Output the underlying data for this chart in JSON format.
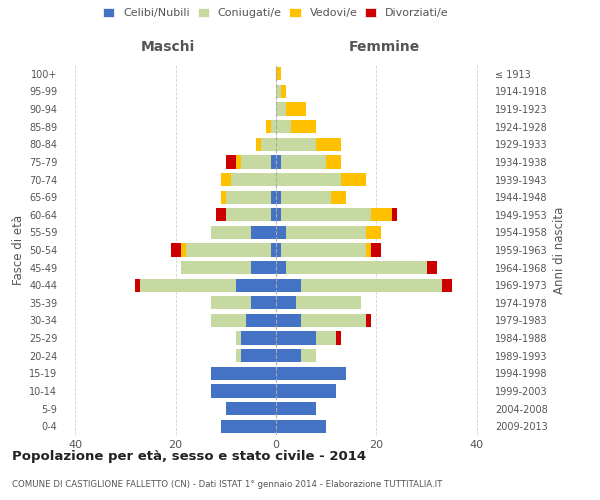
{
  "age_groups": [
    "0-4",
    "5-9",
    "10-14",
    "15-19",
    "20-24",
    "25-29",
    "30-34",
    "35-39",
    "40-44",
    "45-49",
    "50-54",
    "55-59",
    "60-64",
    "65-69",
    "70-74",
    "75-79",
    "80-84",
    "85-89",
    "90-94",
    "95-99",
    "100+"
  ],
  "birth_years": [
    "2009-2013",
    "2004-2008",
    "1999-2003",
    "1994-1998",
    "1989-1993",
    "1984-1988",
    "1979-1983",
    "1974-1978",
    "1969-1973",
    "1964-1968",
    "1959-1963",
    "1954-1958",
    "1949-1953",
    "1944-1948",
    "1939-1943",
    "1934-1938",
    "1929-1933",
    "1924-1928",
    "1919-1923",
    "1914-1918",
    "≤ 1913"
  ],
  "males": {
    "celibi": [
      11,
      10,
      13,
      13,
      7,
      7,
      6,
      5,
      8,
      5,
      1,
      5,
      1,
      1,
      0,
      1,
      0,
      0,
      0,
      0,
      0
    ],
    "coniugati": [
      0,
      0,
      0,
      0,
      1,
      1,
      7,
      8,
      19,
      14,
      17,
      8,
      9,
      9,
      9,
      6,
      3,
      1,
      0,
      0,
      0
    ],
    "vedovi": [
      0,
      0,
      0,
      0,
      0,
      0,
      0,
      0,
      0,
      0,
      1,
      0,
      0,
      1,
      2,
      1,
      1,
      1,
      0,
      0,
      0
    ],
    "divorziati": [
      0,
      0,
      0,
      0,
      0,
      0,
      0,
      0,
      1,
      0,
      2,
      0,
      2,
      0,
      0,
      2,
      0,
      0,
      0,
      0,
      0
    ]
  },
  "females": {
    "nubili": [
      10,
      8,
      12,
      14,
      5,
      8,
      5,
      4,
      5,
      2,
      1,
      2,
      1,
      1,
      0,
      1,
      0,
      0,
      0,
      0,
      0
    ],
    "coniugate": [
      0,
      0,
      0,
      0,
      3,
      4,
      13,
      13,
      28,
      28,
      17,
      16,
      18,
      10,
      13,
      9,
      8,
      3,
      2,
      1,
      0
    ],
    "vedove": [
      0,
      0,
      0,
      0,
      0,
      0,
      0,
      0,
      0,
      0,
      1,
      3,
      4,
      3,
      5,
      3,
      5,
      5,
      4,
      1,
      1
    ],
    "divorziate": [
      0,
      0,
      0,
      0,
      0,
      1,
      1,
      0,
      2,
      2,
      2,
      0,
      1,
      0,
      0,
      0,
      0,
      0,
      0,
      0,
      0
    ]
  },
  "colors": {
    "celibi": "#4472c4",
    "coniugati": "#c5d9a0",
    "vedovi": "#ffc000",
    "divorziati": "#cc0000"
  },
  "title": "Popolazione per età, sesso e stato civile - 2014",
  "subtitle": "COMUNE DI CASTIGLIONE FALLETTO (CN) - Dati ISTAT 1° gennaio 2014 - Elaborazione TUTTITALIA.IT",
  "ylabel_left": "Fasce di età",
  "ylabel_right": "Anni di nascita",
  "xlim": 43,
  "background_color": "#ffffff",
  "grid_color": "#cccccc",
  "legend_labels": [
    "Celibi/Nubili",
    "Coniugati/e",
    "Vedovi/e",
    "Divorziati/e"
  ],
  "maschi_color": "#555555",
  "femmine_color": "#555555"
}
